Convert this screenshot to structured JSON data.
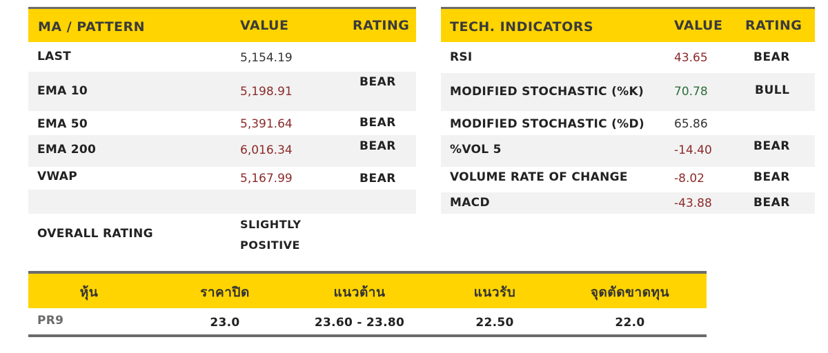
{
  "ma_table": {
    "headers": {
      "pattern": "MA / PATTERN",
      "value": "VALUE",
      "rating": "RATING"
    },
    "rows": [
      {
        "label": "LAST",
        "value": "5,154.19",
        "rating": ""
      },
      {
        "label": "EMA 10",
        "value": "5,198.91",
        "rating": "BEAR"
      },
      {
        "label": "EMA 50",
        "value": "5,391.64",
        "rating": "BEAR"
      },
      {
        "label": "EMA 200",
        "value": "6,016.34",
        "rating": "BEAR"
      },
      {
        "label": "VWAP",
        "value": "5,167.99",
        "rating": "BEAR"
      }
    ],
    "overall_label": "OVERALL RATING",
    "overall_value_line1": "SLIGHTLY",
    "overall_value_line2": "POSITIVE"
  },
  "tech_table": {
    "headers": {
      "indicator": "TECH. INDICATORS",
      "value": "VALUE",
      "rating": "RATING"
    },
    "rows": [
      {
        "label": "RSI",
        "value": "43.65",
        "rating": "BEAR"
      },
      {
        "label": "MODIFIED STOCHASTIC (%K)",
        "value": "70.78",
        "rating": "BULL"
      },
      {
        "label": "MODIFIED STOCHASTIC (%D)",
        "value": "65.86",
        "rating": ""
      },
      {
        "label": "%VOL 5",
        "value": "-14.40",
        "rating": "BEAR"
      },
      {
        "label": "VOLUME RATE OF CHANGE",
        "value": "-8.02",
        "rating": "BEAR"
      },
      {
        "label": "MACD",
        "value": "-43.88",
        "rating": "BEAR"
      }
    ]
  },
  "stock_table": {
    "headers": {
      "stock": "หุ้น",
      "close": "ราคาปิด",
      "resistance": "แนวต้าน",
      "support": "แนวรับ",
      "cut_loss": "จุดตัดขาดทุน"
    },
    "row": {
      "stock": "PR9",
      "close": "23.0",
      "resistance": "23.60 - 23.80",
      "support": "22.50",
      "cut_loss": "22.0"
    }
  },
  "colors": {
    "header_bg": "#ffd400",
    "negative": "#8b2a2a",
    "positive": "#2d6e3a",
    "row_shade": "#f2f2f2"
  }
}
